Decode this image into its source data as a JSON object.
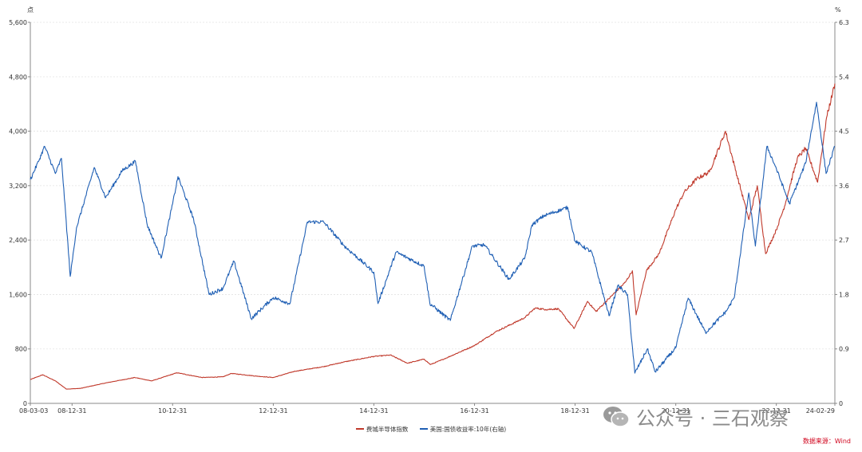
{
  "chart_data": {
    "type": "line",
    "left_unit": "点",
    "right_unit": "%",
    "left_axis": {
      "min": 0,
      "max": 5600,
      "ticks": [
        {
          "v": 0,
          "label": "0"
        },
        {
          "v": 800,
          "label": "800"
        },
        {
          "v": 1600,
          "label": "1,600"
        },
        {
          "v": 2400,
          "label": "2,400"
        },
        {
          "v": 3200,
          "label": "3,200"
        },
        {
          "v": 4000,
          "label": "4,000"
        },
        {
          "v": 4800,
          "label": "4,800"
        },
        {
          "v": 5600,
          "label": "5,600"
        }
      ]
    },
    "right_axis": {
      "min": 0,
      "max": 6.3,
      "ticks": [
        {
          "v": 0,
          "label": "0"
        },
        {
          "v": 0.9,
          "label": "0.9"
        },
        {
          "v": 1.8,
          "label": "1.8"
        },
        {
          "v": 2.7,
          "label": "2.7"
        },
        {
          "v": 3.6,
          "label": "3.6"
        },
        {
          "v": 4.5,
          "label": "4.5"
        },
        {
          "v": 5.4,
          "label": "5.4"
        },
        {
          "v": 6.3,
          "label": "6.3"
        }
      ]
    },
    "x_axis": {
      "start": "2008-03-03",
      "end": "2024-02-29",
      "ticks": [
        {
          "date": "2008-03-03",
          "label": "08-03-03"
        },
        {
          "date": "2008-12-31",
          "label": "08-12-31"
        },
        {
          "date": "2010-12-31",
          "label": "10-12-31"
        },
        {
          "date": "2012-12-31",
          "label": "12-12-31"
        },
        {
          "date": "2014-12-31",
          "label": "14-12-31"
        },
        {
          "date": "2016-12-31",
          "label": "16-12-31"
        },
        {
          "date": "2018-12-31",
          "label": "18-12-31"
        },
        {
          "date": "2020-12-31",
          "label": "20-12-31"
        },
        {
          "date": "2022-12-31",
          "label": "22-12-31"
        },
        {
          "date": "2024-02-29",
          "label": "24-02-29"
        }
      ]
    },
    "grid": true,
    "legend_position": "bottom-center",
    "series": [
      {
        "name": "费城半导体指数",
        "axis": "left",
        "color": "#c0392b",
        "points": [
          [
            "2008-03-03",
            350
          ],
          [
            "2008-06-01",
            420
          ],
          [
            "2008-09-01",
            330
          ],
          [
            "2008-11-20",
            210
          ],
          [
            "2009-03-01",
            220
          ],
          [
            "2009-09-01",
            300
          ],
          [
            "2010-04-01",
            380
          ],
          [
            "2010-08-01",
            330
          ],
          [
            "2011-02-01",
            450
          ],
          [
            "2011-08-01",
            380
          ],
          [
            "2011-12-31",
            390
          ],
          [
            "2012-03-01",
            440
          ],
          [
            "2012-09-01",
            400
          ],
          [
            "2012-12-31",
            380
          ],
          [
            "2013-06-01",
            470
          ],
          [
            "2013-12-31",
            540
          ],
          [
            "2014-06-01",
            610
          ],
          [
            "2014-12-31",
            690
          ],
          [
            "2015-05-01",
            710
          ],
          [
            "2015-09-01",
            590
          ],
          [
            "2015-12-31",
            650
          ],
          [
            "2016-02-15",
            570
          ],
          [
            "2016-06-01",
            660
          ],
          [
            "2016-12-31",
            850
          ],
          [
            "2017-06-01",
            1050
          ],
          [
            "2017-12-31",
            1260
          ],
          [
            "2018-03-15",
            1400
          ],
          [
            "2018-06-01",
            1380
          ],
          [
            "2018-09-01",
            1390
          ],
          [
            "2018-12-24",
            1100
          ],
          [
            "2019-04-01",
            1500
          ],
          [
            "2019-06-01",
            1350
          ],
          [
            "2019-12-31",
            1780
          ],
          [
            "2020-02-20",
            1950
          ],
          [
            "2020-03-18",
            1300
          ],
          [
            "2020-06-01",
            1950
          ],
          [
            "2020-09-01",
            2200
          ],
          [
            "2020-12-31",
            2850
          ],
          [
            "2021-03-01",
            3100
          ],
          [
            "2021-06-01",
            3300
          ],
          [
            "2021-09-01",
            3400
          ],
          [
            "2021-12-27",
            4000
          ],
          [
            "2022-03-01",
            3500
          ],
          [
            "2022-06-15",
            2700
          ],
          [
            "2022-08-15",
            3200
          ],
          [
            "2022-10-14",
            2200
          ],
          [
            "2022-12-31",
            2550
          ],
          [
            "2023-03-01",
            2900
          ],
          [
            "2023-06-01",
            3600
          ],
          [
            "2023-08-01",
            3750
          ],
          [
            "2023-10-27",
            3250
          ],
          [
            "2023-12-31",
            4200
          ],
          [
            "2024-02-29",
            4700
          ]
        ]
      },
      {
        "name": "美国:国债收益率:10年(右轴)",
        "axis": "right",
        "color": "#1f5fb4",
        "points": [
          [
            "2008-03-03",
            3.7
          ],
          [
            "2008-05-01",
            4.0
          ],
          [
            "2008-06-15",
            4.25
          ],
          [
            "2008-09-01",
            3.8
          ],
          [
            "2008-10-15",
            4.05
          ],
          [
            "2008-12-18",
            2.1
          ],
          [
            "2009-02-01",
            2.9
          ],
          [
            "2009-06-10",
            3.9
          ],
          [
            "2009-09-01",
            3.4
          ],
          [
            "2009-12-31",
            3.85
          ],
          [
            "2010-04-05",
            4.0
          ],
          [
            "2010-06-30",
            2.95
          ],
          [
            "2010-10-08",
            2.4
          ],
          [
            "2010-12-31",
            3.3
          ],
          [
            "2011-02-08",
            3.75
          ],
          [
            "2011-06-01",
            3.05
          ],
          [
            "2011-09-22",
            1.8
          ],
          [
            "2011-12-31",
            1.9
          ],
          [
            "2012-03-20",
            2.35
          ],
          [
            "2012-07-24",
            1.4
          ],
          [
            "2012-12-31",
            1.75
          ],
          [
            "2013-05-01",
            1.65
          ],
          [
            "2013-09-05",
            3.0
          ],
          [
            "2013-12-31",
            3.0
          ],
          [
            "2014-06-01",
            2.6
          ],
          [
            "2014-12-31",
            2.17
          ],
          [
            "2015-01-30",
            1.65
          ],
          [
            "2015-06-10",
            2.5
          ],
          [
            "2015-12-31",
            2.27
          ],
          [
            "2016-02-11",
            1.65
          ],
          [
            "2016-07-08",
            1.37
          ],
          [
            "2016-12-15",
            2.6
          ],
          [
            "2017-03-13",
            2.62
          ],
          [
            "2017-09-07",
            2.05
          ],
          [
            "2017-12-31",
            2.4
          ],
          [
            "2018-02-21",
            2.95
          ],
          [
            "2018-05-17",
            3.1
          ],
          [
            "2018-11-08",
            3.24
          ],
          [
            "2018-12-31",
            2.68
          ],
          [
            "2019-05-01",
            2.5
          ],
          [
            "2019-09-03",
            1.45
          ],
          [
            "2019-11-07",
            1.95
          ],
          [
            "2020-01-15",
            1.8
          ],
          [
            "2020-03-09",
            0.5
          ],
          [
            "2020-06-08",
            0.9
          ],
          [
            "2020-08-04",
            0.52
          ],
          [
            "2020-12-31",
            0.92
          ],
          [
            "2021-03-31",
            1.74
          ],
          [
            "2021-08-04",
            1.17
          ],
          [
            "2021-12-31",
            1.52
          ],
          [
            "2022-03-01",
            1.75
          ],
          [
            "2022-06-14",
            3.48
          ],
          [
            "2022-08-01",
            2.6
          ],
          [
            "2022-10-24",
            4.25
          ],
          [
            "2022-12-31",
            3.88
          ],
          [
            "2023-04-05",
            3.3
          ],
          [
            "2023-07-31",
            3.97
          ],
          [
            "2023-10-19",
            4.98
          ],
          [
            "2023-12-27",
            3.8
          ],
          [
            "2024-02-29",
            4.25
          ]
        ]
      }
    ]
  },
  "legend": {
    "items": [
      {
        "label": "费城半导体指数"
      },
      {
        "label": "美国:国债收益率:10年(右轴)"
      }
    ]
  },
  "source": "数据来源：Wind",
  "watermark": "公众号 · 三石观察"
}
